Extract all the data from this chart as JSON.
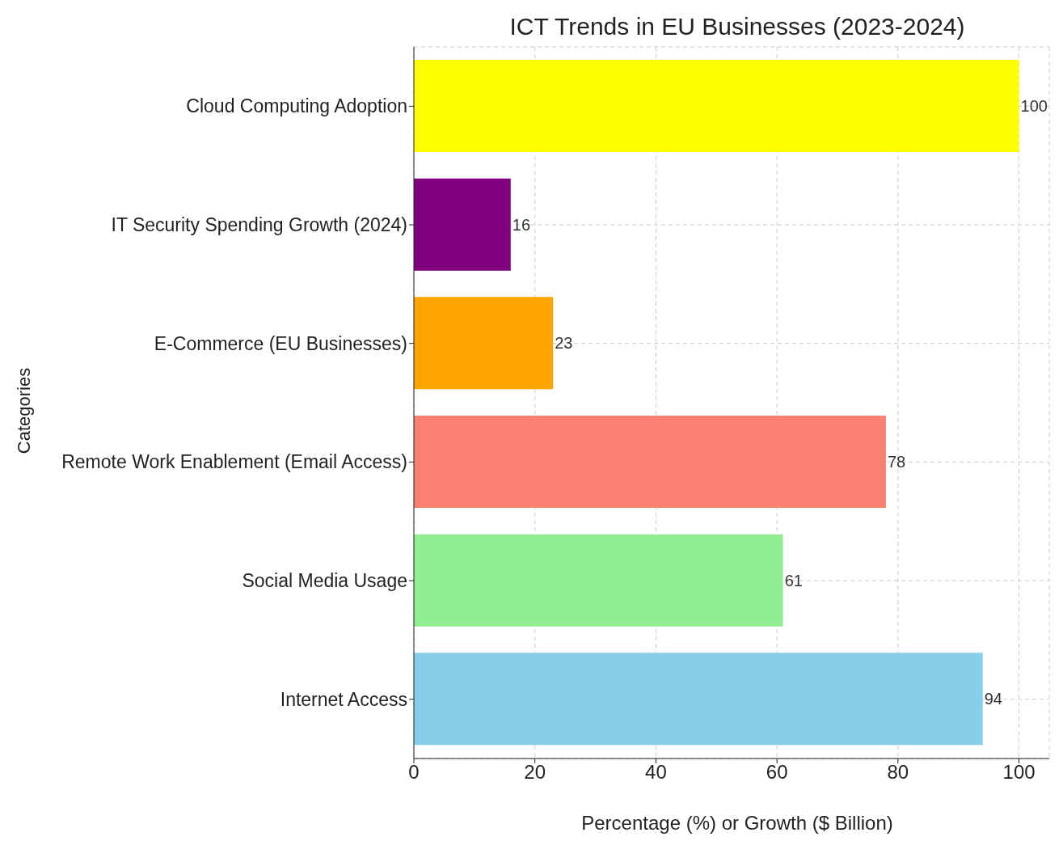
{
  "chart_data": {
    "type": "bar",
    "orientation": "horizontal",
    "title": "ICT Trends in EU Businesses (2023-2024)",
    "xlabel": "Percentage (%) or Growth ($ Billion)",
    "ylabel": "Categories",
    "categories": [
      "Cloud Computing Adoption",
      "IT Security Spending Growth (2024)",
      "E-Commerce (EU Businesses)",
      "Remote Work Enablement (Email Access)",
      "Social Media Usage",
      "Internet Access"
    ],
    "values": [
      100,
      16,
      23,
      78,
      61,
      94
    ],
    "colors": [
      "#ffff00",
      "#800080",
      "#ffa500",
      "#fa8072",
      "#90ee90",
      "#87ceeb"
    ],
    "xlim": [
      0,
      105
    ],
    "xticks": [
      0,
      20,
      40,
      60,
      80,
      100
    ],
    "grid": true,
    "data_labels": true
  }
}
